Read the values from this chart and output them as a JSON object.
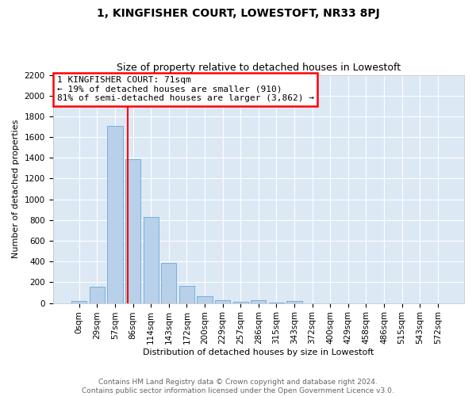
{
  "title": "1, KINGFISHER COURT, LOWESTOFT, NR33 8PJ",
  "subtitle": "Size of property relative to detached houses in Lowestoft",
  "xlabel": "Distribution of detached houses by size in Lowestoft",
  "ylabel": "Number of detached properties",
  "bar_color": "#b8d0ea",
  "bar_edge_color": "#6aaad4",
  "background_color": "#dde8f5",
  "grid_color": "#ffffff",
  "categories": [
    "0sqm",
    "29sqm",
    "57sqm",
    "86sqm",
    "114sqm",
    "143sqm",
    "172sqm",
    "200sqm",
    "229sqm",
    "257sqm",
    "286sqm",
    "315sqm",
    "343sqm",
    "372sqm",
    "400sqm",
    "429sqm",
    "458sqm",
    "486sqm",
    "515sqm",
    "543sqm",
    "572sqm"
  ],
  "values": [
    20,
    155,
    1710,
    1390,
    830,
    385,
    165,
    65,
    30,
    10,
    25,
    5,
    20,
    0,
    0,
    0,
    0,
    0,
    0,
    0,
    0
  ],
  "ylim": [
    0,
    2200
  ],
  "yticks": [
    0,
    200,
    400,
    600,
    800,
    1000,
    1200,
    1400,
    1600,
    1800,
    2000,
    2200
  ],
  "property_label": "1 KINGFISHER COURT: 71sqm",
  "annotation_line1": "← 19% of detached houses are smaller (910)",
  "annotation_line2": "81% of semi-detached houses are larger (3,862) →",
  "vline_x": 2.72,
  "footer_line1": "Contains HM Land Registry data © Crown copyright and database right 2024.",
  "footer_line2": "Contains public sector information licensed under the Open Government Licence v3.0.",
  "title_fontsize": 10,
  "subtitle_fontsize": 9,
  "axis_label_fontsize": 8,
  "tick_fontsize": 7.5,
  "annotation_fontsize": 8,
  "footer_fontsize": 6.5
}
